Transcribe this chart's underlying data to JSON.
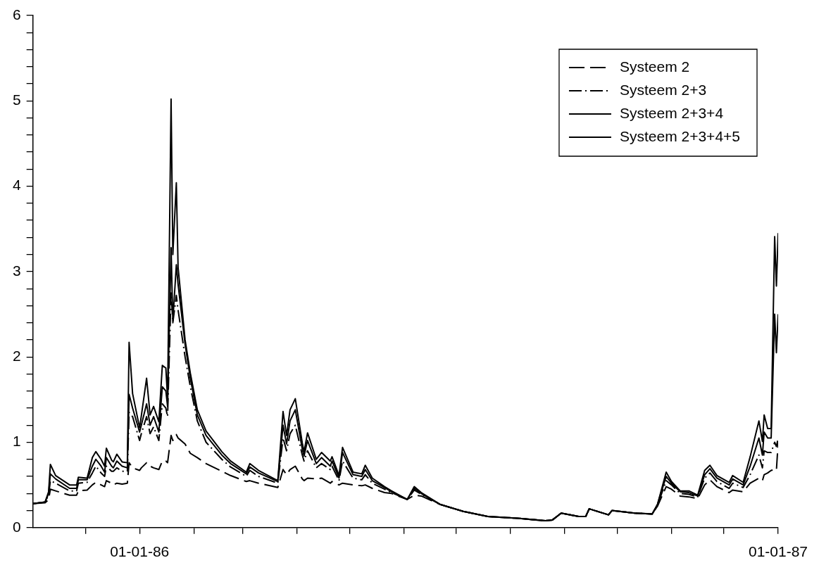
{
  "chart_data": {
    "type": "line",
    "x": [
      "1985-11-01",
      "1985-11-08",
      "1985-11-10",
      "1985-11-11",
      "1985-11-14",
      "1985-11-22",
      "1985-11-26",
      "1985-11-27",
      "1985-12-02",
      "1985-12-05",
      "1985-12-07",
      "1985-12-10",
      "1985-12-12",
      "1985-12-13",
      "1985-12-16",
      "1985-12-17",
      "1985-12-19",
      "1985-12-22",
      "1985-12-25",
      "1985-12-26",
      "1985-12-28",
      "1986-01-01",
      "1986-01-02",
      "1986-01-05",
      "1986-01-07",
      "1986-01-09",
      "1986-01-12",
      "1986-01-14",
      "1986-01-16",
      "1986-01-17",
      "1986-01-19",
      "1986-01-20",
      "1986-01-22",
      "1986-01-23",
      "1986-01-27",
      "1986-01-30",
      "1986-02-03",
      "1986-02-08",
      "1986-02-17",
      "1986-02-22",
      "1986-03-03",
      "1986-03-05",
      "1986-03-10",
      "1986-03-21",
      "1986-03-24",
      "1986-03-26",
      "1986-03-28",
      "1986-03-31",
      "1986-04-04",
      "1986-04-05",
      "1986-04-07",
      "1986-04-12",
      "1986-04-15",
      "1986-04-20",
      "1986-04-21",
      "1986-04-25",
      "1986-04-27",
      "1986-05-03",
      "1986-05-08",
      "1986-05-10",
      "1986-05-14",
      "1986-05-21",
      "1986-05-25",
      "1986-06-03",
      "1986-06-07",
      "1986-06-11",
      "1986-06-22",
      "1986-07-05",
      "1986-07-19",
      "1986-08-05",
      "1986-08-21",
      "1986-08-25",
      "1986-08-30",
      "1986-09-09",
      "1986-09-13",
      "1986-09-15",
      "1986-09-26",
      "1986-09-28",
      "1986-10-11",
      "1986-10-21",
      "1986-10-24",
      "1986-10-29",
      "1986-11-01",
      "1986-11-06",
      "1986-11-11",
      "1986-11-16",
      "1986-11-20",
      "1986-11-23",
      "1986-11-27",
      "1986-12-04",
      "1986-12-06",
      "1986-12-12",
      "1986-12-16",
      "1986-12-21",
      "1986-12-23",
      "1986-12-24",
      "1986-12-26",
      "1986-12-28",
      "1986-12-30",
      "1986-12-31",
      "1987-01-01"
    ],
    "series": [
      {
        "name": "Systeem 2",
        "color": "#000000",
        "line_style": "dashed",
        "values": [
          0.28,
          0.29,
          0.33,
          0.45,
          0.43,
          0.38,
          0.38,
          0.43,
          0.44,
          0.5,
          0.53,
          0.5,
          0.48,
          0.55,
          0.52,
          0.5,
          0.52,
          0.51,
          0.52,
          0.76,
          0.7,
          0.67,
          0.7,
          0.76,
          0.72,
          0.7,
          0.68,
          0.78,
          0.78,
          0.76,
          1.08,
          1.02,
          1.09,
          1.05,
          0.98,
          0.87,
          0.82,
          0.75,
          0.66,
          0.61,
          0.54,
          0.55,
          0.52,
          0.47,
          0.68,
          0.62,
          0.68,
          0.72,
          0.57,
          0.55,
          0.58,
          0.57,
          0.58,
          0.52,
          0.54,
          0.5,
          0.52,
          0.5,
          0.49,
          0.5,
          0.46,
          0.41,
          0.4,
          0.33,
          0.38,
          0.37,
          0.27,
          0.19,
          0.13,
          0.11,
          0.08,
          0.09,
          0.17,
          0.13,
          0.13,
          0.22,
          0.15,
          0.2,
          0.17,
          0.16,
          0.25,
          0.48,
          0.45,
          0.37,
          0.36,
          0.34,
          0.5,
          0.56,
          0.48,
          0.41,
          0.44,
          0.42,
          0.52,
          0.58,
          0.55,
          0.62,
          0.64,
          0.67,
          0.68,
          0.67,
          1.0
        ]
      },
      {
        "name": "Systeem 2+3",
        "color": "#000000",
        "line_style": "dashdot",
        "values": [
          0.28,
          0.3,
          0.38,
          0.55,
          0.52,
          0.43,
          0.43,
          0.52,
          0.53,
          0.64,
          0.72,
          0.64,
          0.6,
          0.72,
          0.66,
          0.66,
          0.7,
          0.66,
          0.66,
          1.35,
          1.3,
          1.02,
          1.1,
          1.3,
          1.1,
          1.18,
          1.02,
          1.45,
          1.4,
          1.3,
          2.75,
          2.4,
          2.72,
          2.55,
          2.0,
          1.65,
          1.25,
          1.0,
          0.8,
          0.71,
          0.6,
          0.67,
          0.6,
          0.52,
          1.05,
          0.9,
          1.1,
          1.2,
          0.85,
          0.78,
          0.9,
          0.7,
          0.75,
          0.68,
          0.72,
          0.55,
          0.78,
          0.58,
          0.56,
          0.62,
          0.52,
          0.45,
          0.41,
          0.33,
          0.44,
          0.39,
          0.27,
          0.19,
          0.13,
          0.11,
          0.08,
          0.09,
          0.17,
          0.13,
          0.13,
          0.22,
          0.15,
          0.2,
          0.17,
          0.16,
          0.26,
          0.55,
          0.5,
          0.4,
          0.39,
          0.36,
          0.58,
          0.64,
          0.54,
          0.46,
          0.52,
          0.47,
          0.62,
          0.85,
          0.7,
          0.9,
          0.88,
          0.88,
          1.0,
          0.95,
          1.05
        ]
      },
      {
        "name": "Systeem 2+3+4",
        "color": "#000000",
        "line_style": "solid",
        "values": [
          0.28,
          0.3,
          0.4,
          0.63,
          0.57,
          0.46,
          0.46,
          0.56,
          0.56,
          0.72,
          0.8,
          0.72,
          0.65,
          0.82,
          0.72,
          0.7,
          0.78,
          0.72,
          0.7,
          1.56,
          1.4,
          1.12,
          1.2,
          1.45,
          1.2,
          1.3,
          1.12,
          1.65,
          1.6,
          1.42,
          3.28,
          2.42,
          3.08,
          2.85,
          2.15,
          1.75,
          1.32,
          1.08,
          0.85,
          0.75,
          0.63,
          0.71,
          0.64,
          0.54,
          1.2,
          0.98,
          1.25,
          1.38,
          0.92,
          0.84,
          1.02,
          0.75,
          0.82,
          0.72,
          0.78,
          0.58,
          0.88,
          0.62,
          0.6,
          0.68,
          0.55,
          0.47,
          0.42,
          0.33,
          0.46,
          0.4,
          0.27,
          0.19,
          0.13,
          0.11,
          0.08,
          0.09,
          0.17,
          0.13,
          0.13,
          0.22,
          0.15,
          0.2,
          0.17,
          0.16,
          0.27,
          0.6,
          0.52,
          0.42,
          0.41,
          0.37,
          0.62,
          0.69,
          0.58,
          0.5,
          0.57,
          0.5,
          0.72,
          1.05,
          0.85,
          1.12,
          1.05,
          1.05,
          2.5,
          2.05,
          2.5
        ]
      },
      {
        "name": "Systeem 2+3+4+5",
        "color": "#000000",
        "line_style": "solid",
        "values": [
          0.28,
          0.3,
          0.42,
          0.74,
          0.61,
          0.5,
          0.5,
          0.59,
          0.58,
          0.82,
          0.89,
          0.8,
          0.72,
          0.93,
          0.79,
          0.77,
          0.86,
          0.77,
          0.76,
          2.17,
          1.57,
          1.17,
          1.31,
          1.75,
          1.32,
          1.42,
          1.24,
          1.9,
          1.87,
          1.51,
          5.02,
          3.2,
          4.04,
          3.05,
          2.2,
          1.81,
          1.38,
          1.13,
          0.89,
          0.78,
          0.65,
          0.75,
          0.67,
          0.55,
          1.36,
          1.08,
          1.38,
          1.51,
          0.99,
          0.89,
          1.11,
          0.8,
          0.88,
          0.78,
          0.83,
          0.61,
          0.94,
          0.65,
          0.63,
          0.73,
          0.58,
          0.48,
          0.43,
          0.33,
          0.48,
          0.41,
          0.27,
          0.19,
          0.13,
          0.11,
          0.08,
          0.09,
          0.17,
          0.13,
          0.13,
          0.22,
          0.15,
          0.2,
          0.17,
          0.16,
          0.27,
          0.65,
          0.54,
          0.43,
          0.43,
          0.38,
          0.67,
          0.73,
          0.61,
          0.53,
          0.61,
          0.53,
          0.83,
          1.25,
          1.01,
          1.32,
          1.16,
          1.16,
          3.41,
          2.83,
          3.45
        ]
      }
    ],
    "xlim": [
      "1985-11-01",
      "1987-01-01"
    ],
    "xticks": [
      {
        "value": "1985-12-01",
        "label": null
      },
      {
        "value": "1986-01-01",
        "label": "01-01-86"
      },
      {
        "value": "1986-02-01",
        "label": null
      },
      {
        "value": "1986-03-01",
        "label": null
      },
      {
        "value": "1986-04-01",
        "label": null
      },
      {
        "value": "1986-05-01",
        "label": null
      },
      {
        "value": "1986-06-01",
        "label": null
      },
      {
        "value": "1986-07-01",
        "label": null
      },
      {
        "value": "1986-08-01",
        "label": null
      },
      {
        "value": "1986-09-01",
        "label": null
      },
      {
        "value": "1986-10-01",
        "label": null
      },
      {
        "value": "1986-11-01",
        "label": null
      },
      {
        "value": "1986-12-01",
        "label": null
      },
      {
        "value": "1987-01-01",
        "label": "01-01-87"
      }
    ],
    "ylim": [
      0,
      6
    ],
    "yticks": [
      0,
      {
        "value": 0.2,
        "label": null
      },
      {
        "value": 0.4,
        "label": null
      },
      {
        "value": 0.6,
        "label": null
      },
      {
        "value": 0.8,
        "label": null
      },
      1,
      {
        "value": 1.2,
        "label": null
      },
      {
        "value": 1.4,
        "label": null
      },
      {
        "value": 1.6,
        "label": null
      },
      {
        "value": 1.8,
        "label": null
      },
      2,
      {
        "value": 2.2,
        "label": null
      },
      {
        "value": 2.4,
        "label": null
      },
      {
        "value": 2.6,
        "label": null
      },
      {
        "value": 2.8,
        "label": null
      },
      3,
      {
        "value": 3.2,
        "label": null
      },
      {
        "value": 3.4,
        "label": null
      },
      {
        "value": 3.6,
        "label": null
      },
      {
        "value": 3.8,
        "label": null
      },
      4,
      {
        "value": 4.2,
        "label": null
      },
      {
        "value": 4.4,
        "label": null
      },
      {
        "value": 4.6,
        "label": null
      },
      {
        "value": 4.8,
        "label": null
      },
      5,
      {
        "value": 5.2,
        "label": null
      },
      {
        "value": 5.4,
        "label": null
      },
      {
        "value": 5.6,
        "label": null
      },
      {
        "value": 5.8,
        "label": null
      },
      6
    ],
    "legend": "top right",
    "grid": false,
    "marker": "none"
  }
}
